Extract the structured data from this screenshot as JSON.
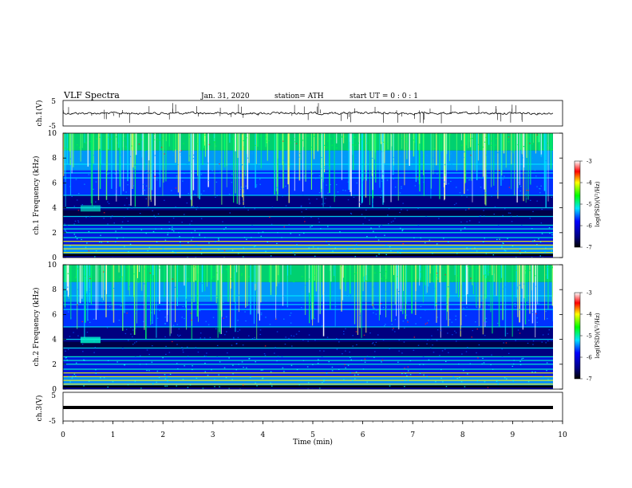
{
  "header": {
    "title": "VLF Spectra",
    "date": "Jan. 31, 2020",
    "station": "station= ATH",
    "start": "start UT = 0 : 0 : 1"
  },
  "chart_data": [
    {
      "type": "line",
      "panel": "ch1-waveform",
      "ylabel": "ch.1(V)",
      "ylim": [
        -5,
        5
      ],
      "y_ticks": [
        "5",
        "-5"
      ],
      "xlim": [
        0,
        10
      ],
      "description_series": "noisy waveform centered near 0 V with occasional spikes"
    },
    {
      "type": "heatmap",
      "panel": "ch1-spectrogram",
      "ylabel": "ch.1 Frequency (kHz)",
      "ylim": [
        0,
        10
      ],
      "y_ticks": [
        "10",
        "8",
        "6",
        "4",
        "2",
        "0"
      ],
      "xlim": [
        0,
        10
      ],
      "colorbar": {
        "label": "log(PSD)(V²/Hz)",
        "range": [
          -7,
          -3
        ],
        "ticks": [
          "-3",
          "-4",
          "-5",
          "-6",
          "-7"
        ]
      }
    },
    {
      "type": "heatmap",
      "panel": "ch2-spectrogram",
      "ylabel": "ch.2 Frequency (kHz)",
      "ylim": [
        0,
        10
      ],
      "y_ticks": [
        "10",
        "8",
        "6",
        "4",
        "2",
        "0"
      ],
      "xlim": [
        0,
        10
      ],
      "colorbar": {
        "label": "log(PSD)(V²/Hz)",
        "range": [
          -7,
          -3
        ],
        "ticks": [
          "-3",
          "-4",
          "-5",
          "-6",
          "-7"
        ]
      }
    },
    {
      "type": "line",
      "panel": "ch3-waveform",
      "ylabel": "ch.3(V)",
      "ylim": [
        -5,
        5
      ],
      "y_ticks": [
        "5",
        "-5"
      ],
      "xlim": [
        0,
        10
      ],
      "description_series": "flat signal near -1 V"
    }
  ],
  "xaxis": {
    "label": "Time (min)",
    "ticks": [
      "0",
      "1",
      "2",
      "3",
      "4",
      "5",
      "6",
      "7",
      "8",
      "9",
      "10"
    ]
  },
  "colors": {
    "deep": "#000080",
    "blue": "#0000ff",
    "cyan": "#00e5ff",
    "green": "#00ff00",
    "yellow": "#ffff00",
    "red": "#ff0000"
  }
}
